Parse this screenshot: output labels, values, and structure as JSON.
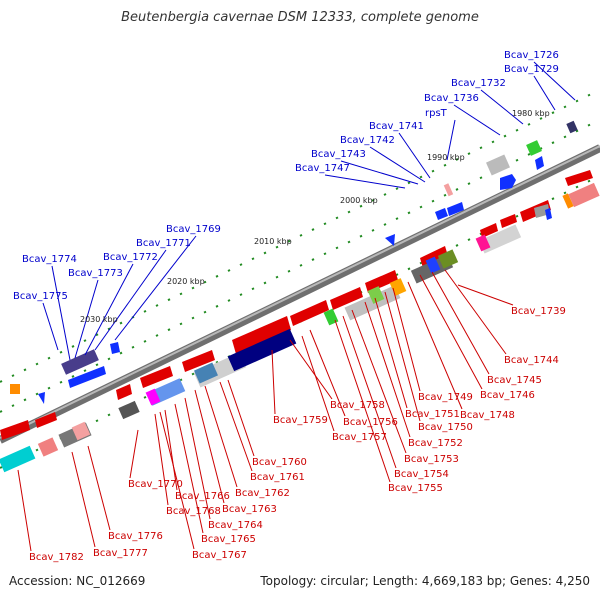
{
  "title": "Beutenbergia cavernae DSM 12333, complete genome",
  "footer": {
    "accession": "Accession: NC_012669",
    "summary": "Topology: circular; Length: 4,669,183 bp; Genes: 4,250"
  },
  "colors": {
    "forward_label": "#0000cc",
    "reverse_label": "#cc0000",
    "backbone": "#8a8a8a"
  },
  "ticks": [
    "1980 kbp",
    "1990 kbp",
    "2000 kbp",
    "2010 kbp",
    "2020 kbp",
    "2030 kbp"
  ],
  "forward_labels": [
    "Bcav_1726",
    "Bcav_1729",
    "Bcav_1732",
    "Bcav_1736",
    "rpsT",
    "Bcav_1741",
    "Bcav_1742",
    "Bcav_1743",
    "Bcav_1747",
    "Bcav_1769",
    "Bcav_1771",
    "Bcav_1772",
    "Bcav_1773",
    "Bcav_1774",
    "Bcav_1775"
  ],
  "reverse_labels": [
    "Bcav_1739",
    "Bcav_1744",
    "Bcav_1745",
    "Bcav_1746",
    "Bcav_1748",
    "Bcav_1749",
    "Bcav_1750",
    "Bcav_1751",
    "Bcav_1752",
    "Bcav_1753",
    "Bcav_1754",
    "Bcav_1755",
    "Bcav_1756",
    "Bcav_1757",
    "Bcav_1758",
    "Bcav_1759",
    "Bcav_1760",
    "Bcav_1761",
    "Bcav_1762",
    "Bcav_1763",
    "Bcav_1764",
    "Bcav_1765",
    "Bcav_1766",
    "Bcav_1767",
    "Bcav_1768",
    "Bcav_1770",
    "Bcav_1776",
    "Bcav_1777",
    "Bcav_1782"
  ]
}
